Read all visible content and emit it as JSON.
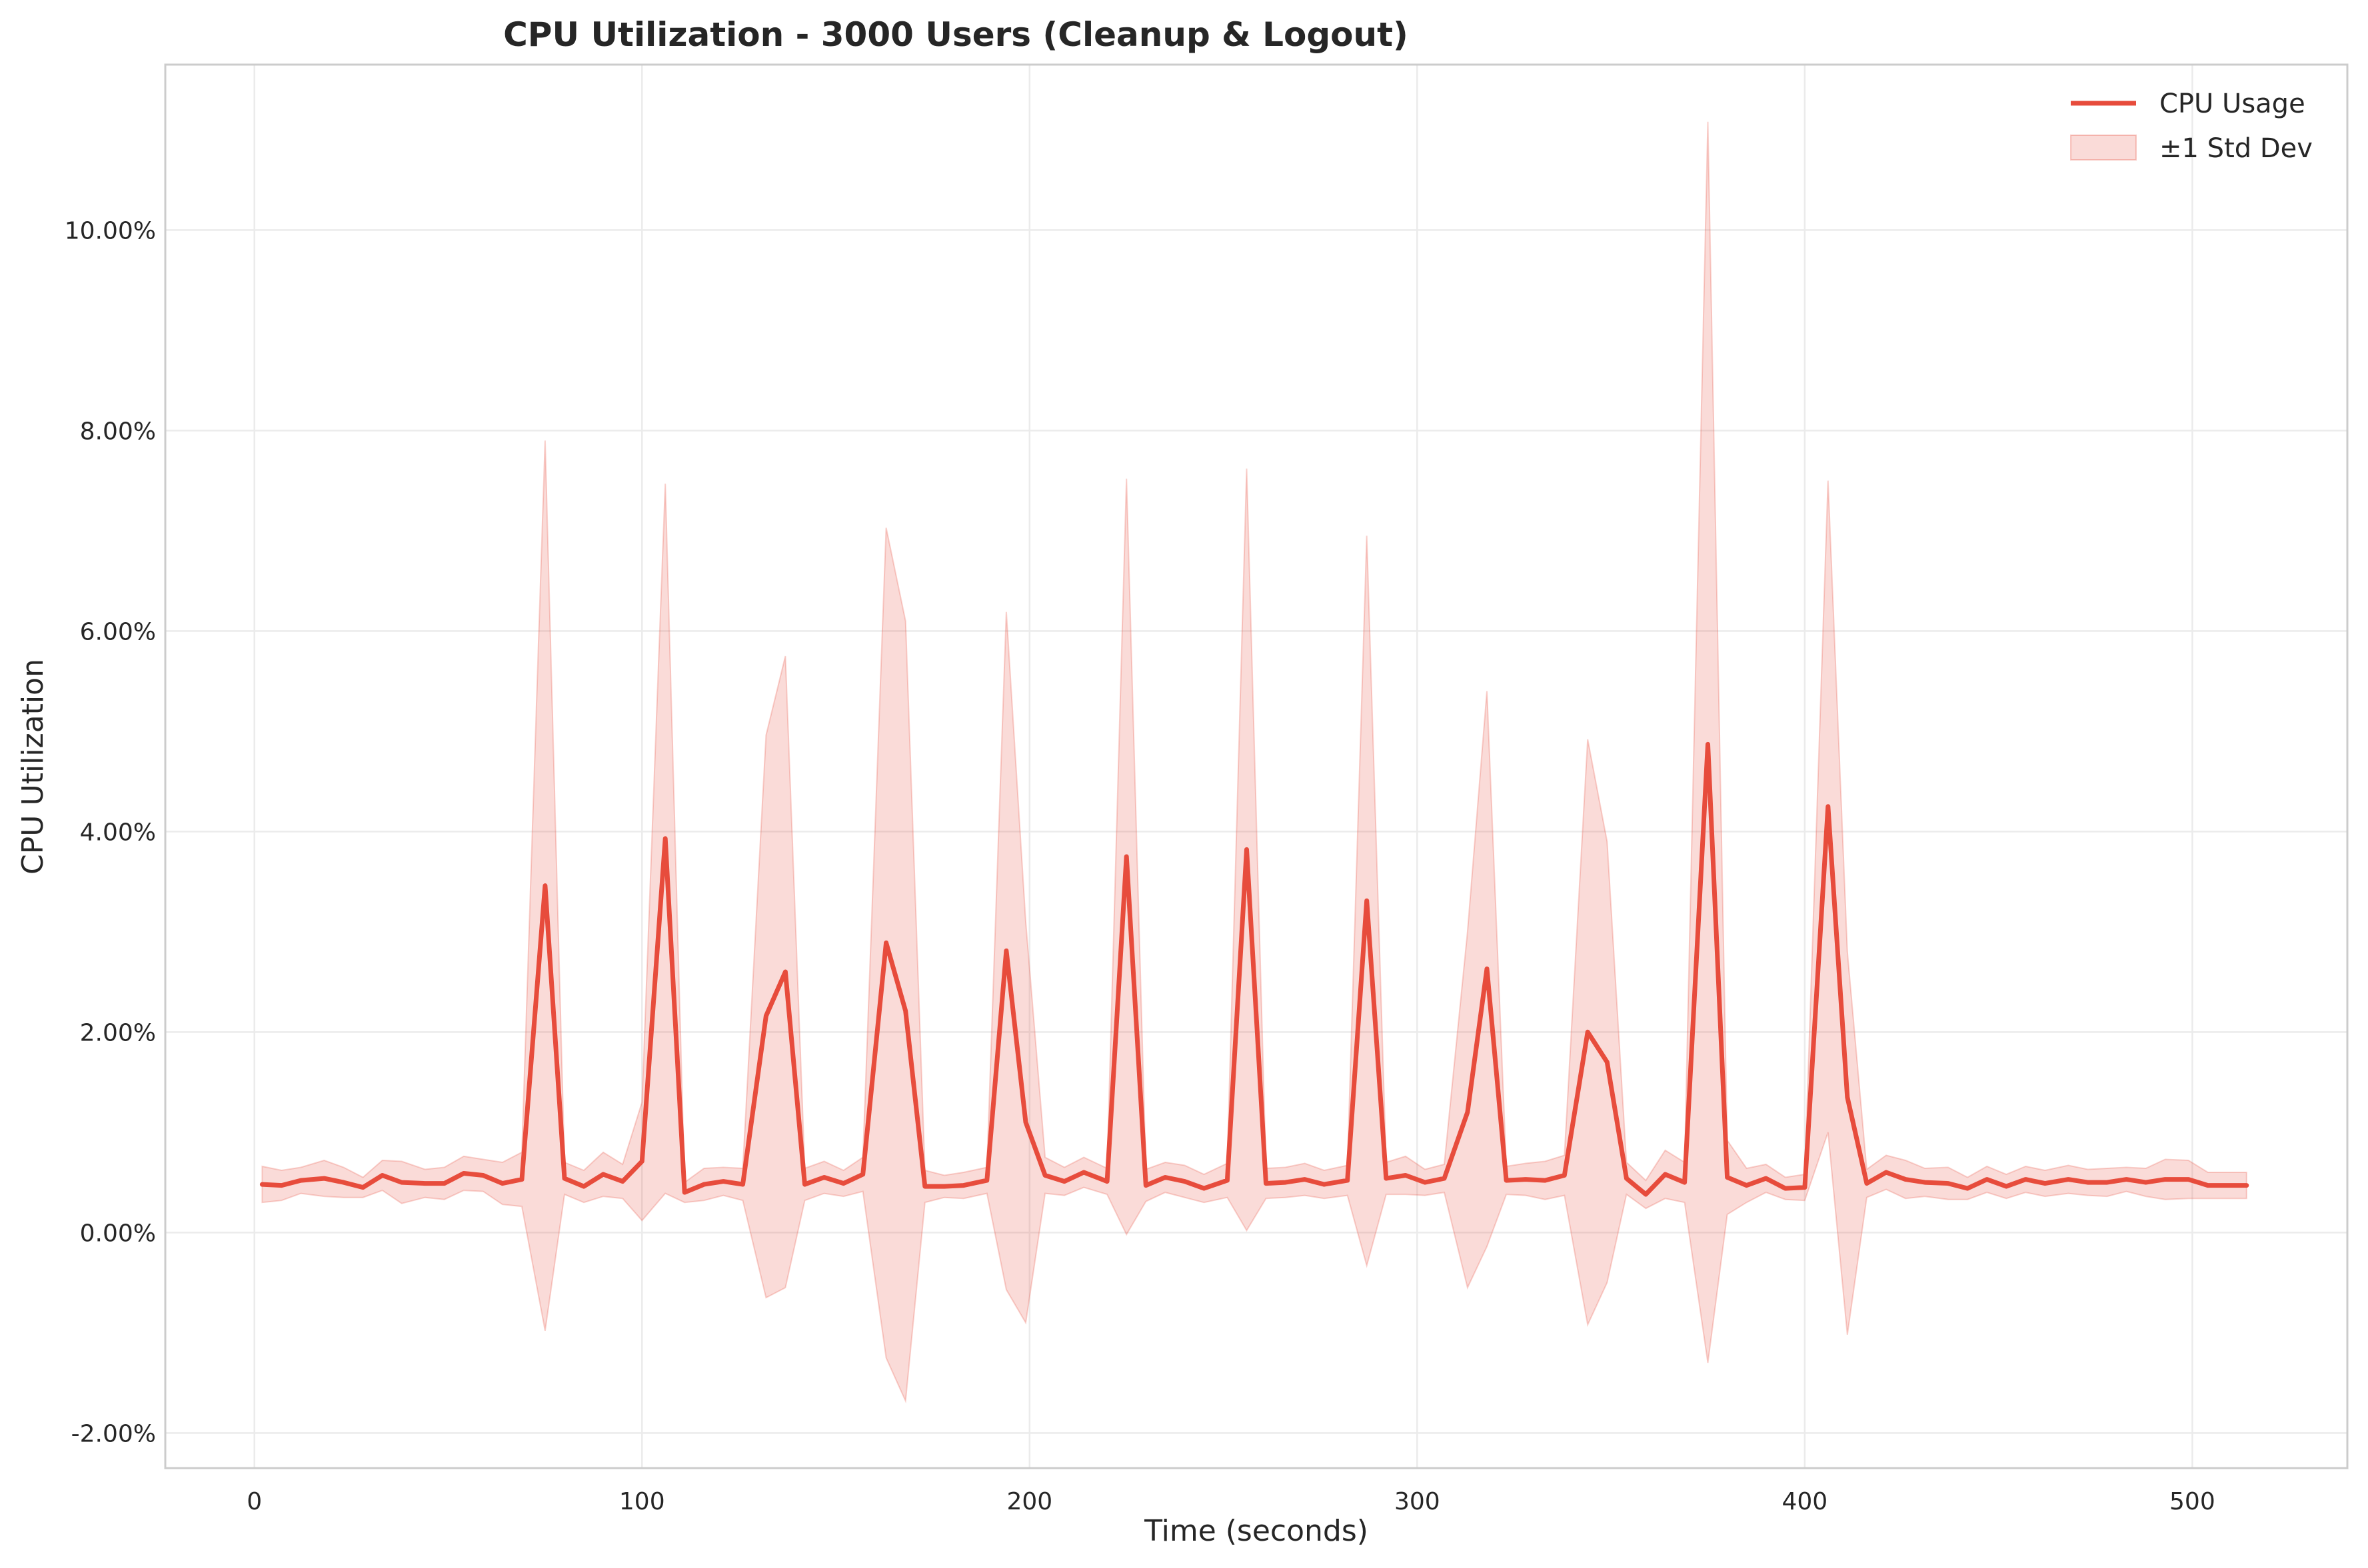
{
  "chart_data": {
    "type": "line",
    "title": "CPU Utilization - 3000 Users (Cleanup & Logout)",
    "xlabel": "Time (seconds)",
    "ylabel": "CPU Utilization",
    "xlim": [
      -23,
      540
    ],
    "ylim": [
      -2.35,
      11.65
    ],
    "xticks": [
      0,
      100,
      200,
      300,
      400,
      500
    ],
    "xtick_labels": [
      "0",
      "100",
      "200",
      "300",
      "400",
      "500"
    ],
    "yticks": [
      -2,
      0,
      2,
      4,
      6,
      8,
      10
    ],
    "ytick_labels": [
      "-2.00%",
      "0.00%",
      "2.00%",
      "4.00%",
      "6.00%",
      "8.00%",
      "10.00%"
    ],
    "grid": true,
    "legend_position": "top-right",
    "colors": {
      "line": "#e74c3c",
      "band": "#e74c3c"
    },
    "series": [
      {
        "name": "CPU Usage",
        "kind": "line"
      },
      {
        "name": "±1 Std Dev",
        "kind": "band"
      }
    ],
    "x": [
      2,
      7,
      12,
      18,
      23,
      28,
      33,
      38,
      44,
      49,
      54,
      59,
      64,
      69,
      75,
      80,
      85,
      90,
      95,
      100,
      106,
      111,
      116,
      121,
      126,
      132,
      137,
      142,
      147,
      152,
      157,
      163,
      168,
      173,
      178,
      183,
      189,
      194,
      199,
      204,
      209,
      214,
      220,
      225,
      230,
      235,
      240,
      245,
      251,
      256,
      261,
      266,
      271,
      276,
      282,
      287,
      292,
      297,
      302,
      307,
      313,
      318,
      323,
      328,
      333,
      338,
      344,
      349,
      354,
      359,
      364,
      369,
      375,
      380,
      385,
      390,
      395,
      400,
      406,
      411,
      416,
      421,
      426,
      431,
      437,
      442,
      447,
      452,
      457,
      462,
      468,
      473,
      478,
      483,
      488,
      493,
      499,
      504,
      509,
      514
    ],
    "mean": [
      0.48,
      0.47,
      0.52,
      0.54,
      0.5,
      0.45,
      0.57,
      0.5,
      0.49,
      0.49,
      0.59,
      0.57,
      0.49,
      0.53,
      3.46,
      0.54,
      0.46,
      0.58,
      0.51,
      0.71,
      3.93,
      0.4,
      0.48,
      0.51,
      0.48,
      2.16,
      2.6,
      0.48,
      0.55,
      0.49,
      0.58,
      2.89,
      2.21,
      0.46,
      0.46,
      0.47,
      0.52,
      2.81,
      1.1,
      0.57,
      0.51,
      0.6,
      0.51,
      3.75,
      0.47,
      0.55,
      0.51,
      0.44,
      0.52,
      3.82,
      0.49,
      0.5,
      0.53,
      0.48,
      0.52,
      3.31,
      0.54,
      0.57,
      0.5,
      0.54,
      1.2,
      2.63,
      0.52,
      0.53,
      0.52,
      0.57,
      2.0,
      1.7,
      0.54,
      0.38,
      0.58,
      0.5,
      4.87,
      0.55,
      0.47,
      0.54,
      0.44,
      0.45,
      4.25,
      1.35,
      0.49,
      0.6,
      0.53,
      0.5,
      0.49,
      0.44,
      0.53,
      0.46,
      0.53,
      0.49,
      0.53,
      0.5,
      0.5,
      0.53,
      0.5,
      0.53,
      0.53,
      0.47,
      0.47,
      0.47
    ],
    "std_upper": [
      0.66,
      0.62,
      0.65,
      0.72,
      0.65,
      0.55,
      0.72,
      0.71,
      0.63,
      0.65,
      0.76,
      0.73,
      0.7,
      0.8,
      7.9,
      0.7,
      0.62,
      0.8,
      0.68,
      1.3,
      7.47,
      0.5,
      0.64,
      0.65,
      0.64,
      4.96,
      5.75,
      0.64,
      0.71,
      0.62,
      0.75,
      7.03,
      6.1,
      0.62,
      0.57,
      0.6,
      0.65,
      6.19,
      3.1,
      0.75,
      0.65,
      0.75,
      0.64,
      7.52,
      0.63,
      0.7,
      0.67,
      0.58,
      0.69,
      7.62,
      0.64,
      0.65,
      0.69,
      0.62,
      0.67,
      6.95,
      0.7,
      0.76,
      0.63,
      0.68,
      3.0,
      5.4,
      0.66,
      0.69,
      0.71,
      0.77,
      4.92,
      3.9,
      0.7,
      0.52,
      0.82,
      0.7,
      11.08,
      0.92,
      0.64,
      0.68,
      0.55,
      0.58,
      7.5,
      2.8,
      0.63,
      0.77,
      0.72,
      0.64,
      0.65,
      0.55,
      0.66,
      0.58,
      0.66,
      0.62,
      0.67,
      0.63,
      0.64,
      0.65,
      0.64,
      0.73,
      0.72,
      0.6,
      0.6,
      0.6
    ],
    "std_lower": [
      0.3,
      0.32,
      0.39,
      0.36,
      0.35,
      0.35,
      0.42,
      0.29,
      0.35,
      0.33,
      0.42,
      0.41,
      0.28,
      0.26,
      -0.98,
      0.38,
      0.3,
      0.36,
      0.34,
      0.12,
      0.39,
      0.3,
      0.32,
      0.37,
      0.32,
      -0.65,
      -0.55,
      0.32,
      0.39,
      0.36,
      0.41,
      -1.25,
      -1.68,
      0.3,
      0.35,
      0.34,
      0.39,
      -0.57,
      -0.9,
      0.39,
      0.37,
      0.45,
      0.38,
      -0.02,
      0.31,
      0.4,
      0.35,
      0.3,
      0.35,
      0.02,
      0.34,
      0.35,
      0.37,
      0.34,
      0.37,
      -0.33,
      0.38,
      0.38,
      0.37,
      0.4,
      -0.55,
      -0.14,
      0.38,
      0.37,
      0.33,
      0.37,
      -0.92,
      -0.5,
      0.38,
      0.24,
      0.34,
      0.3,
      -1.3,
      0.18,
      0.3,
      0.4,
      0.33,
      0.32,
      1.0,
      -1.02,
      0.35,
      0.43,
      0.34,
      0.36,
      0.33,
      0.33,
      0.4,
      0.34,
      0.4,
      0.36,
      0.39,
      0.37,
      0.36,
      0.41,
      0.36,
      0.33,
      0.34,
      0.34,
      0.34,
      0.34
    ]
  }
}
